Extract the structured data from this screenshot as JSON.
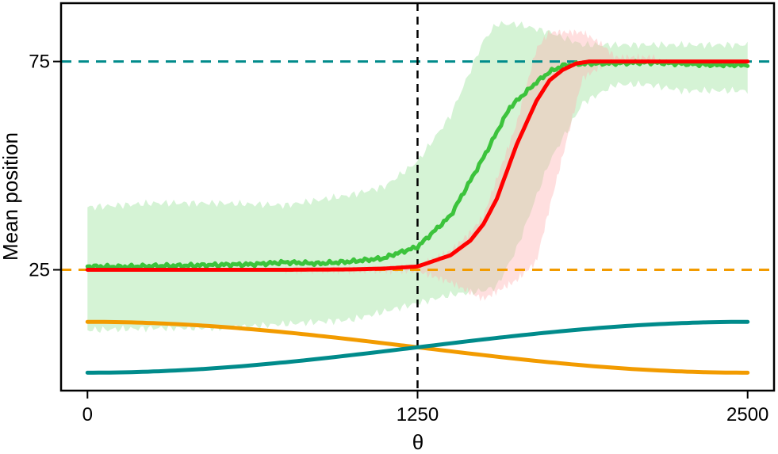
{
  "chart_data": {
    "type": "line",
    "xlabel": "θ",
    "ylabel": "Mean position",
    "xlim": [
      -100,
      2600
    ],
    "ylim": [
      -4,
      89
    ],
    "x_ticks": [
      0,
      1250,
      2500
    ],
    "x_tick_labels": [
      "0",
      "1250",
      "2500"
    ],
    "y_ticks": [
      25,
      75
    ],
    "y_tick_labels": [
      "25",
      "75"
    ],
    "grid": false,
    "legend": "none",
    "reference_lines": [
      {
        "orientation": "horizontal",
        "value": 75,
        "style": "dashed",
        "color": "#008b8b"
      },
      {
        "orientation": "horizontal",
        "value": 25,
        "style": "dashed",
        "color": "#f29b00"
      },
      {
        "orientation": "vertical",
        "value": 1250,
        "style": "dashed",
        "color": "#000000"
      }
    ],
    "bands": [
      {
        "color": "#90e090",
        "opacity": 0.38,
        "x": [
          0,
          250,
          500,
          750,
          1000,
          1125,
          1250,
          1375,
          1500,
          1550,
          1625,
          1750,
          1875,
          2000,
          2125,
          2250,
          2375,
          2500
        ],
        "upper": [
          40,
          41,
          41,
          40.5,
          43,
          45,
          51,
          62,
          80,
          84,
          84,
          82,
          79,
          79,
          79,
          79,
          79,
          79
        ],
        "lower": [
          10.5,
          11,
          11,
          12,
          13,
          15,
          17,
          19,
          20,
          21,
          30,
          51,
          65,
          69.5,
          69.5,
          68,
          68,
          68
        ]
      },
      {
        "color": "#ffb0b0",
        "opacity": 0.4,
        "x": [
          750,
          1000,
          1125,
          1250,
          1375,
          1450,
          1500,
          1625,
          1700,
          1750,
          1875,
          1950,
          2000,
          2150
        ],
        "upper": [
          25.3,
          25.3,
          25.3,
          26,
          29.5,
          34,
          38,
          60,
          78,
          82,
          82,
          79,
          76,
          76
        ],
        "lower": [
          24.7,
          24.7,
          24.7,
          24.7,
          22,
          19.5,
          18,
          22.5,
          27,
          40,
          71,
          74,
          74.5,
          75
        ]
      }
    ],
    "series": [
      {
        "color": "#3cc33c",
        "x": [
          0,
          125,
          250,
          375,
          500,
          625,
          750,
          875,
          1000,
          1125,
          1150,
          1250,
          1375,
          1500,
          1600,
          1700,
          1750,
          1800,
          1875,
          2000,
          2125,
          2250,
          2375,
          2500
        ],
        "values": [
          25.8,
          25.7,
          25.9,
          26.0,
          26.2,
          26.3,
          26.8,
          26.5,
          27.0,
          27.8,
          28.5,
          30.5,
          38,
          52,
          64,
          70,
          72.5,
          74,
          74.5,
          74.6,
          74.8,
          74.5,
          74.2,
          74.2
        ]
      },
      {
        "color": "#ff0000",
        "x": [
          0,
          250,
          500,
          750,
          1000,
          1125,
          1250,
          1375,
          1450,
          1500,
          1550,
          1625,
          1700,
          1750,
          1800,
          1850,
          1900,
          2000,
          2125,
          2250,
          2375,
          2500
        ],
        "values": [
          25,
          25,
          25,
          25,
          25.1,
          25.3,
          25.8,
          28.5,
          32,
          36,
          42,
          55,
          65.5,
          70.5,
          73,
          74.5,
          75,
          75,
          75,
          75,
          75,
          75
        ]
      },
      {
        "color": "#f29b00",
        "curve": "cosine",
        "x_start": 0,
        "x_end": 2500,
        "y_start": 12.5,
        "y_end": 0.3
      },
      {
        "color": "#008b8b",
        "curve": "cosine",
        "x_start": 0,
        "x_end": 2500,
        "y_start": 0.3,
        "y_end": 12.5
      }
    ]
  }
}
